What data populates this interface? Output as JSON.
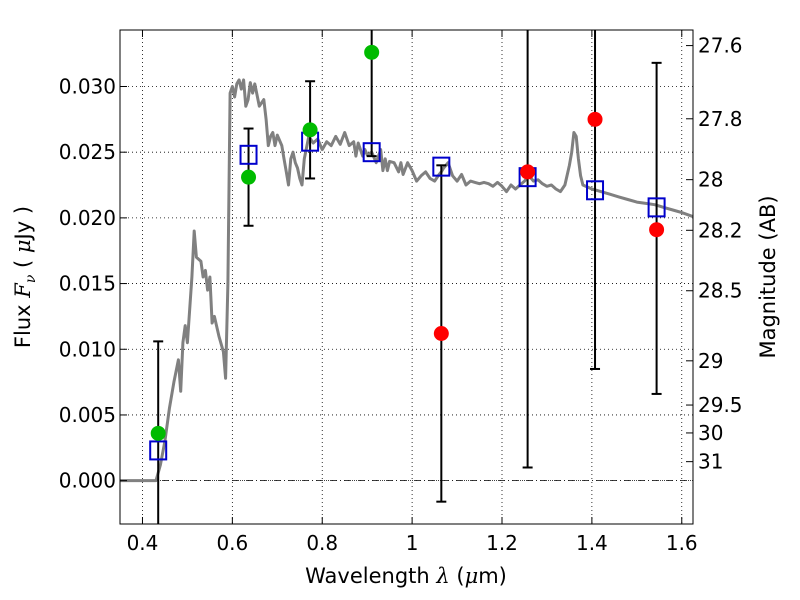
{
  "chart_data": {
    "type": "scatter",
    "title": "",
    "xlabel": "Wavelength  λ (μm)",
    "ylabel": "Flux  F_ν  ( μJy )",
    "y2label": "Magnitude (AB)",
    "xlim": [
      0.35,
      1.625
    ],
    "ylim": [
      -0.0033,
      0.0343
    ],
    "grid": true,
    "legend": "none",
    "x_ticks": [
      0.4,
      0.6,
      0.8,
      1.0,
      1.2,
      1.4,
      1.6
    ],
    "x_tick_labels": [
      "0.4",
      "0.6",
      "0.8",
      "1",
      "1.2",
      "1.4",
      "1.6"
    ],
    "y_ticks": [
      0.0,
      0.005,
      0.01,
      0.015,
      0.02,
      0.025,
      0.03
    ],
    "y_tick_labels": [
      "0.000",
      "0.005",
      "0.010",
      "0.015",
      "0.020",
      "0.025",
      "0.030"
    ],
    "y2_ticks": [
      {
        "label": "27.6",
        "mag": 27.6
      },
      {
        "label": "27.8",
        "mag": 27.8
      },
      {
        "label": "28",
        "mag": 28.0
      },
      {
        "label": "28.2",
        "mag": 28.2
      },
      {
        "label": "28.5",
        "mag": 28.5
      },
      {
        "label": "29",
        "mag": 29.0
      },
      {
        "label": "29.5",
        "mag": 29.5
      },
      {
        "label": "30",
        "mag": 30.0
      },
      {
        "label": "31",
        "mag": 31.0
      }
    ],
    "colors": {
      "spectrum": "#808080",
      "model": "#0000cc",
      "good": "#00bb00",
      "bad": "#ff0000",
      "errorbar": "#000000"
    },
    "spectrum": [
      [
        0.35,
        0.0
      ],
      [
        0.43,
        0.0
      ],
      [
        0.44,
        0.0012
      ],
      [
        0.45,
        0.003
      ],
      [
        0.46,
        0.0055
      ],
      [
        0.47,
        0.0075
      ],
      [
        0.48,
        0.0092
      ],
      [
        0.485,
        0.0068
      ],
      [
        0.49,
        0.0105
      ],
      [
        0.495,
        0.0118
      ],
      [
        0.5,
        0.0105
      ],
      [
        0.51,
        0.0155
      ],
      [
        0.515,
        0.019
      ],
      [
        0.52,
        0.017
      ],
      [
        0.53,
        0.0167
      ],
      [
        0.535,
        0.0155
      ],
      [
        0.54,
        0.016
      ],
      [
        0.545,
        0.0145
      ],
      [
        0.55,
        0.0155
      ],
      [
        0.555,
        0.012
      ],
      [
        0.56,
        0.0125
      ],
      [
        0.57,
        0.011
      ],
      [
        0.58,
        0.0098
      ],
      [
        0.585,
        0.0078
      ],
      [
        0.59,
        0.015
      ],
      [
        0.595,
        0.0295
      ],
      [
        0.6,
        0.03
      ],
      [
        0.605,
        0.0292
      ],
      [
        0.61,
        0.0302
      ],
      [
        0.615,
        0.0305
      ],
      [
        0.62,
        0.0298
      ],
      [
        0.625,
        0.0305
      ],
      [
        0.63,
        0.0285
      ],
      [
        0.635,
        0.029
      ],
      [
        0.64,
        0.0303
      ],
      [
        0.645,
        0.0295
      ],
      [
        0.65,
        0.0302
      ],
      [
        0.66,
        0.0285
      ],
      [
        0.67,
        0.029
      ],
      [
        0.675,
        0.0275
      ],
      [
        0.68,
        0.0255
      ],
      [
        0.685,
        0.0262
      ],
      [
        0.69,
        0.0265
      ],
      [
        0.695,
        0.0255
      ],
      [
        0.7,
        0.0263
      ],
      [
        0.71,
        0.0255
      ],
      [
        0.715,
        0.0245
      ],
      [
        0.72,
        0.0235
      ],
      [
        0.725,
        0.0225
      ],
      [
        0.73,
        0.0245
      ],
      [
        0.735,
        0.025
      ],
      [
        0.74,
        0.0242
      ],
      [
        0.745,
        0.0238
      ],
      [
        0.75,
        0.023
      ],
      [
        0.755,
        0.0225
      ],
      [
        0.76,
        0.0245
      ],
      [
        0.77,
        0.0262
      ],
      [
        0.78,
        0.0257
      ],
      [
        0.79,
        0.026
      ],
      [
        0.8,
        0.0252
      ],
      [
        0.81,
        0.0258
      ],
      [
        0.82,
        0.0255
      ],
      [
        0.83,
        0.0262
      ],
      [
        0.84,
        0.0256
      ],
      [
        0.85,
        0.0265
      ],
      [
        0.86,
        0.0255
      ],
      [
        0.87,
        0.0258
      ],
      [
        0.875,
        0.0247
      ],
      [
        0.88,
        0.0257
      ],
      [
        0.89,
        0.0247
      ],
      [
        0.895,
        0.0252
      ],
      [
        0.9,
        0.0248
      ],
      [
        0.91,
        0.025
      ],
      [
        0.92,
        0.0242
      ],
      [
        0.93,
        0.0252
      ],
      [
        0.935,
        0.0236
      ],
      [
        0.94,
        0.0245
      ],
      [
        0.945,
        0.0236
      ],
      [
        0.95,
        0.0243
      ],
      [
        0.96,
        0.0242
      ],
      [
        0.97,
        0.0235
      ],
      [
        0.975,
        0.0242
      ],
      [
        0.98,
        0.0233
      ],
      [
        0.99,
        0.0242
      ],
      [
        1.0,
        0.0236
      ],
      [
        1.01,
        0.0228
      ],
      [
        1.02,
        0.0232
      ],
      [
        1.03,
        0.0235
      ],
      [
        1.04,
        0.023
      ],
      [
        1.05,
        0.0228
      ],
      [
        1.06,
        0.0233
      ],
      [
        1.065,
        0.0235
      ],
      [
        1.07,
        0.0238
      ],
      [
        1.08,
        0.0242
      ],
      [
        1.09,
        0.0232
      ],
      [
        1.1,
        0.0228
      ],
      [
        1.11,
        0.0233
      ],
      [
        1.12,
        0.0225
      ],
      [
        1.13,
        0.0228
      ],
      [
        1.14,
        0.0227
      ],
      [
        1.15,
        0.0226
      ],
      [
        1.16,
        0.0227
      ],
      [
        1.17,
        0.0226
      ],
      [
        1.18,
        0.0224
      ],
      [
        1.19,
        0.0227
      ],
      [
        1.2,
        0.0224
      ],
      [
        1.21,
        0.022
      ],
      [
        1.22,
        0.0225
      ],
      [
        1.23,
        0.0222
      ],
      [
        1.24,
        0.0225
      ],
      [
        1.25,
        0.0228
      ],
      [
        1.26,
        0.0232
      ],
      [
        1.27,
        0.0228
      ],
      [
        1.28,
        0.0229
      ],
      [
        1.29,
        0.0226
      ],
      [
        1.3,
        0.0224
      ],
      [
        1.31,
        0.0225
      ],
      [
        1.32,
        0.0222
      ],
      [
        1.33,
        0.022
      ],
      [
        1.34,
        0.0225
      ],
      [
        1.35,
        0.024
      ],
      [
        1.355,
        0.025
      ],
      [
        1.36,
        0.0265
      ],
      [
        1.365,
        0.0262
      ],
      [
        1.37,
        0.0245
      ],
      [
        1.375,
        0.0232
      ],
      [
        1.38,
        0.0225
      ],
      [
        1.4,
        0.0222
      ],
      [
        1.42,
        0.022
      ],
      [
        1.44,
        0.0218
      ],
      [
        1.46,
        0.0216
      ],
      [
        1.48,
        0.0214
      ],
      [
        1.5,
        0.0212
      ],
      [
        1.52,
        0.0211
      ],
      [
        1.54,
        0.021
      ],
      [
        1.56,
        0.0208
      ],
      [
        1.58,
        0.0206
      ],
      [
        1.6,
        0.0204
      ],
      [
        1.625,
        0.0201
      ]
    ],
    "model_points": [
      {
        "x": 0.435,
        "y": 0.0023
      },
      {
        "x": 0.636,
        "y": 0.0248
      },
      {
        "x": 0.773,
        "y": 0.0258
      },
      {
        "x": 0.91,
        "y": 0.025
      },
      {
        "x": 1.065,
        "y": 0.0239
      },
      {
        "x": 1.257,
        "y": 0.0231
      },
      {
        "x": 1.407,
        "y": 0.0221
      },
      {
        "x": 1.544,
        "y": 0.0208
      }
    ],
    "observed_points": [
      {
        "x": 0.435,
        "y": 0.0036,
        "err_low": -0.0033,
        "err_high": 0.0106,
        "color": "good"
      },
      {
        "x": 0.636,
        "y": 0.0231,
        "err_low": 0.0194,
        "err_high": 0.0268,
        "color": "good"
      },
      {
        "x": 0.773,
        "y": 0.0267,
        "err_low": 0.023,
        "err_high": 0.0304,
        "color": "good"
      },
      {
        "x": 0.91,
        "y": 0.0326,
        "err_low": 0.0247,
        "err_high": 0.0343,
        "color": "good"
      },
      {
        "x": 1.065,
        "y": 0.0112,
        "err_low": -0.0016,
        "err_high": 0.024,
        "color": "bad"
      },
      {
        "x": 1.257,
        "y": 0.0235,
        "err_low": 0.001,
        "err_high": 0.0343,
        "color": "bad"
      },
      {
        "x": 1.407,
        "y": 0.0275,
        "err_low": 0.0085,
        "err_high": 0.0343,
        "color": "bad"
      },
      {
        "x": 1.544,
        "y": 0.0191,
        "err_low": 0.0066,
        "err_high": 0.0318,
        "color": "bad"
      }
    ]
  }
}
